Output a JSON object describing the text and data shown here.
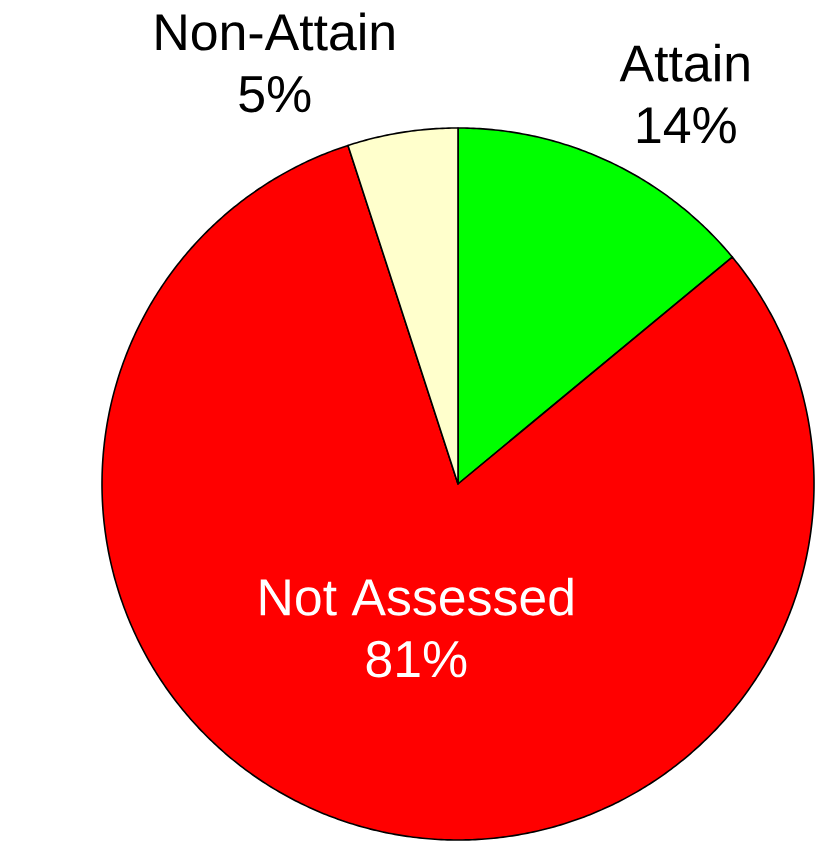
{
  "chart_data": {
    "type": "pie",
    "categories": [
      "Attain",
      "Not Assessed",
      "Non-Attain"
    ],
    "values": [
      14,
      81,
      5
    ],
    "colors": [
      "#00ff00",
      "#ff0000",
      "#ffffcc"
    ],
    "value_labels": [
      "14%",
      "81%",
      "5%"
    ]
  }
}
